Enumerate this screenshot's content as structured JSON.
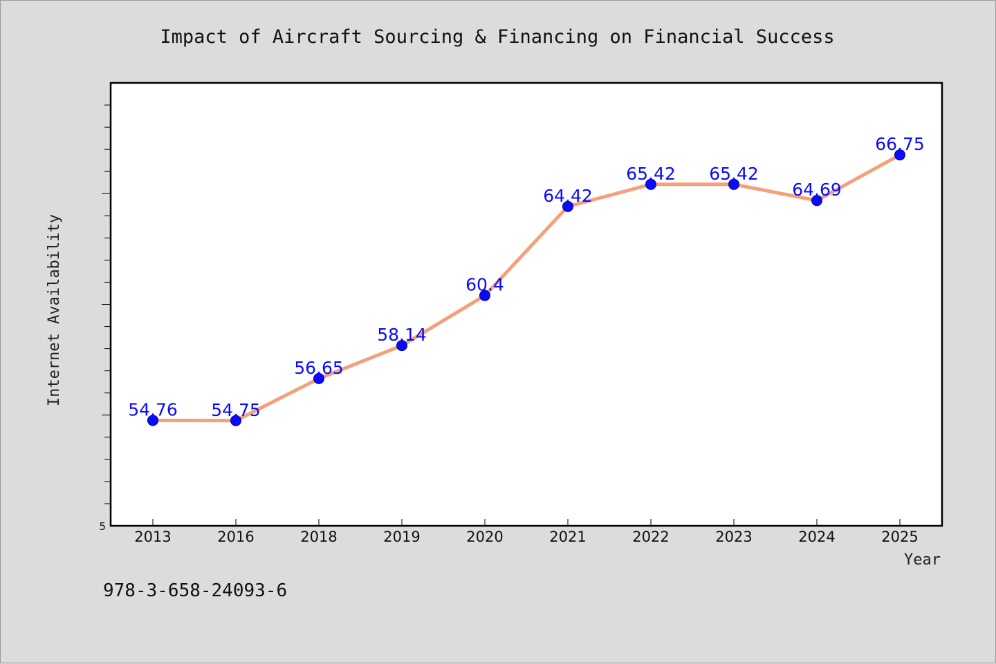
{
  "chart_data": {
    "type": "line",
    "title": "Impact of Aircraft Sourcing & Financing on Financial Success",
    "xlabel": "Year",
    "ylabel": "Internet Availability",
    "categories": [
      "2013",
      "2016",
      "2018",
      "2019",
      "2020",
      "2021",
      "2022",
      "2023",
      "2024",
      "2025"
    ],
    "series": [
      {
        "values": [
          54.76,
          54.75,
          56.65,
          58.14,
          60.4,
          64.42,
          65.42,
          65.42,
          64.69,
          66.75
        ],
        "labels": [
          "54.76",
          "54.75",
          "56.65",
          "58.14",
          "60.4",
          "64.42",
          "65.42",
          "65.42",
          "64.69",
          "66.75"
        ]
      }
    ],
    "ylim": [
      50,
      70
    ],
    "y_tick_labels": [
      "5"
    ],
    "grid": false,
    "legend": "none",
    "colors": {
      "line": "#f4a07a",
      "marker": "#0a0aff",
      "label": "#0a0aff"
    }
  },
  "footer": {
    "isbn": "978-3-658-24093-6"
  }
}
